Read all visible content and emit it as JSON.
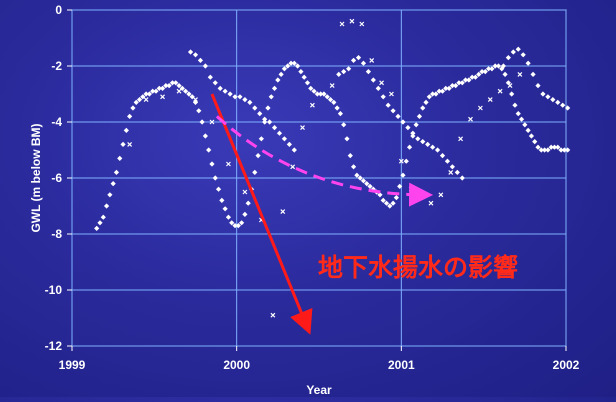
{
  "chart_data": {
    "type": "scatter",
    "xlabel": "Year",
    "ylabel": "GWL (m below BM)",
    "xlim": [
      1999,
      2002
    ],
    "ylim": [
      -12,
      0
    ],
    "x_ticks": [
      1999,
      2000,
      2001,
      2002
    ],
    "x_tick_labels": [
      "1999",
      "2000",
      "2001",
      "2002"
    ],
    "y_ticks": [
      0,
      -2,
      -4,
      -6,
      -8,
      -10,
      -12
    ],
    "y_tick_labels": [
      "0",
      "-2",
      "-4",
      "-6",
      "-8",
      "-10",
      "-12"
    ],
    "grid": true,
    "colors": {
      "points": "#ffffff",
      "grid": "#7fb2ff",
      "arrow_solid": "#ff1a1a",
      "arrow_dashed": "#ff44ee",
      "annotation": "#ff2a1a"
    },
    "series": [
      {
        "marker": "diamond",
        "x": [
          1999.15,
          1999.17,
          1999.19,
          1999.21,
          1999.23,
          1999.25,
          1999.27,
          1999.29,
          1999.31,
          1999.33,
          1999.35,
          1999.37,
          1999.39,
          1999.41,
          1999.43,
          1999.45,
          1999.47,
          1999.49,
          1999.51,
          1999.53,
          1999.55,
          1999.57,
          1999.59,
          1999.61,
          1999.63,
          1999.65,
          1999.67,
          1999.69,
          1999.71,
          1999.73,
          1999.75,
          1999.77,
          1999.79,
          1999.81,
          1999.83,
          1999.85,
          1999.87,
          1999.89,
          1999.91,
          1999.93,
          1999.95,
          1999.97,
          1999.99,
          2000.01,
          2000.03,
          2000.05,
          2000.07,
          2000.09,
          2000.11,
          2000.13,
          2000.15,
          2000.17,
          2000.19,
          2000.21,
          2000.23,
          2000.25,
          2000.27,
          2000.29,
          2000.31,
          2000.33,
          2000.35,
          2000.37,
          2000.39,
          2000.41,
          2000.43,
          2000.45,
          2000.47,
          2000.49,
          2000.51,
          2000.53,
          2000.55,
          2000.57,
          2000.59,
          2000.61,
          2000.63,
          2000.65,
          2000.67,
          2000.69,
          2000.71,
          2000.73,
          2000.75,
          2000.77,
          2000.79,
          2000.81,
          2000.83,
          2000.85,
          2000.87,
          2000.89,
          2000.91,
          2000.93,
          2000.95,
          2000.97,
          2000.99,
          2001.01,
          2001.03,
          2001.05,
          2001.07,
          2001.09,
          2001.11,
          2001.13,
          2001.15,
          2001.17,
          2001.19,
          2001.21,
          2001.23,
          2001.25,
          2001.27,
          2001.29,
          2001.31,
          2001.33,
          2001.35,
          2001.37,
          2001.39,
          2001.41,
          2001.43,
          2001.45,
          2001.47,
          2001.49,
          2001.51,
          2001.53,
          2001.55,
          2001.57,
          2001.59,
          2001.61,
          2001.63,
          2001.65,
          2001.67,
          2001.69,
          2001.71,
          2001.73,
          2001.75,
          2001.77,
          2001.79,
          2001.81,
          2001.83,
          2001.85,
          2001.87,
          2001.89,
          2001.91,
          2001.93,
          2001.95,
          2001.97,
          2001.99,
          2002.01
        ],
        "y": [
          -7.8,
          -7.6,
          -7.4,
          -7.0,
          -6.6,
          -6.2,
          -5.8,
          -5.3,
          -4.8,
          -4.3,
          -3.8,
          -3.5,
          -3.3,
          -3.2,
          -3.1,
          -3.0,
          -3.0,
          -2.9,
          -2.9,
          -2.8,
          -2.8,
          -2.7,
          -2.7,
          -2.6,
          -2.6,
          -2.7,
          -2.8,
          -2.9,
          -3.0,
          -3.1,
          -3.3,
          -3.6,
          -4.0,
          -4.5,
          -5.0,
          -5.5,
          -6.0,
          -6.4,
          -6.8,
          -7.1,
          -7.4,
          -7.6,
          -7.7,
          -7.7,
          -7.6,
          -7.3,
          -6.9,
          -6.4,
          -5.8,
          -5.2,
          -4.6,
          -4.0,
          -3.5,
          -3.1,
          -2.8,
          -2.5,
          -2.3,
          -2.1,
          -2.0,
          -1.9,
          -1.9,
          -2.0,
          -2.2,
          -2.4,
          -2.6,
          -2.8,
          -2.9,
          -3.0,
          -3.0,
          -3.0,
          -3.1,
          -3.2,
          -3.3,
          -3.5,
          -3.7,
          -4.1,
          -4.6,
          -5.2,
          -5.6,
          -5.9,
          -6.0,
          -6.1,
          -6.2,
          -6.3,
          -6.4,
          -6.5,
          -6.6,
          -6.8,
          -6.9,
          -7.0,
          -6.9,
          -6.7,
          -6.3,
          -5.9,
          -5.4,
          -4.9,
          -4.5,
          -4.1,
          -3.8,
          -3.5,
          -3.3,
          -3.1,
          -3.0,
          -3.0,
          -2.9,
          -2.9,
          -2.8,
          -2.8,
          -2.7,
          -2.7,
          -2.6,
          -2.6,
          -2.5,
          -2.5,
          -2.4,
          -2.4,
          -2.3,
          -2.2,
          -2.2,
          -2.1,
          -2.1,
          -2.0,
          -2.0,
          -2.1,
          -2.3,
          -2.6,
          -3.0,
          -3.4,
          -3.7,
          -3.9,
          -4.1,
          -4.3,
          -4.5,
          -4.7,
          -4.9,
          -5.0,
          -5.0,
          -5.0,
          -4.9,
          -4.9,
          -4.9,
          -5.0,
          -5.0,
          -5.0
        ]
      },
      {
        "marker": "diamond",
        "x": [
          1999.72,
          1999.75,
          1999.78,
          1999.81,
          1999.84,
          1999.87,
          1999.9,
          1999.93,
          1999.96,
          1999.99,
          2000.02,
          2000.05,
          2000.08,
          2000.11,
          2000.14,
          2000.17,
          2000.2,
          2000.23,
          2000.26,
          2000.29,
          2000.32,
          2000.35,
          2000.62,
          2000.65,
          2000.68,
          2000.71,
          2000.74,
          2000.77,
          2000.8,
          2000.83,
          2000.86,
          2000.89,
          2000.92,
          2000.95,
          2000.98,
          2001.01,
          2001.04,
          2001.07,
          2001.1,
          2001.13,
          2001.16,
          2001.19,
          2001.22,
          2001.25,
          2001.28,
          2001.31,
          2001.34,
          2001.37,
          2001.62,
          2001.65,
          2001.68,
          2001.71,
          2001.74,
          2001.77,
          2001.8,
          2001.83,
          2001.86,
          2001.89,
          2001.92,
          2001.95,
          2001.98,
          2002.01
        ],
        "y": [
          -1.5,
          -1.6,
          -1.8,
          -2.0,
          -2.4,
          -2.6,
          -2.8,
          -2.9,
          -3.0,
          -3.1,
          -3.1,
          -3.2,
          -3.3,
          -3.5,
          -3.7,
          -3.9,
          -4.0,
          -4.2,
          -4.4,
          -4.6,
          -4.8,
          -5.0,
          -2.3,
          -2.2,
          -2.1,
          -1.8,
          -1.7,
          -1.9,
          -2.2,
          -2.5,
          -2.8,
          -3.1,
          -3.4,
          -3.6,
          -3.8,
          -4.0,
          -4.2,
          -4.4,
          -4.6,
          -4.7,
          -4.8,
          -4.9,
          -5.0,
          -5.2,
          -5.4,
          -5.6,
          -5.8,
          -6.0,
          -2.0,
          -1.7,
          -1.5,
          -1.4,
          -1.6,
          -1.9,
          -2.3,
          -2.7,
          -3.0,
          -3.1,
          -3.2,
          -3.3,
          -3.4,
          -3.5
        ]
      },
      {
        "marker": "cross",
        "x": [
          1999.35,
          1999.45,
          1999.55,
          1999.65,
          1999.75,
          1999.85,
          1999.95,
          2000.05,
          2000.15,
          2000.22,
          2000.28,
          2000.34,
          2000.4,
          2000.46,
          2000.52,
          2000.58,
          2000.64,
          2000.7,
          2000.76,
          2000.82,
          2000.88,
          2000.94,
          2001.0,
          2001.06,
          2001.12,
          2001.18,
          2001.24,
          2001.3,
          2001.36,
          2001.42,
          2001.48,
          2001.54,
          2001.6,
          2001.66,
          2001.72
        ],
        "y": [
          -4.8,
          -3.2,
          -3.1,
          -2.9,
          -3.2,
          -4.0,
          -5.5,
          -6.5,
          -7.5,
          -10.9,
          -7.2,
          -5.6,
          -4.2,
          -3.4,
          -3.0,
          -2.7,
          -0.5,
          -0.4,
          -0.5,
          -1.8,
          -2.6,
          -3.0,
          -5.4,
          -6.4,
          -6.7,
          -6.9,
          -6.6,
          -5.8,
          -4.6,
          -3.9,
          -3.5,
          -3.2,
          -2.9,
          -2.7,
          -2.3
        ]
      }
    ],
    "annotations": {
      "text": "地下水揚水の影響",
      "solid_arrow": {
        "from": [
          1999.85,
          -3.0
        ],
        "to": [
          2000.42,
          -11.2
        ]
      },
      "dashed_arrow": {
        "from": [
          1999.88,
          -3.8
        ],
        "via": [
          2000.4,
          -6.2
        ],
        "to": [
          2001.12,
          -6.6
        ]
      }
    }
  }
}
